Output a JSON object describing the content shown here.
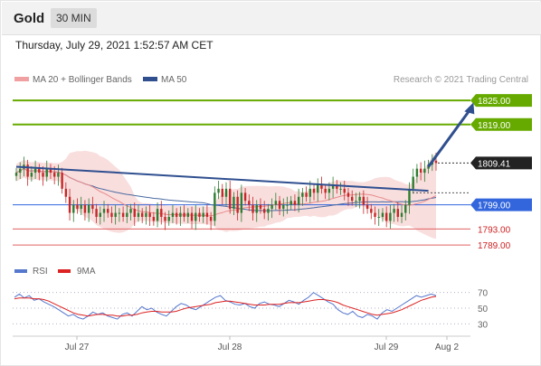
{
  "header": {
    "instrument": "Gold",
    "timeframe": "30 MIN"
  },
  "datetime": "Thursday, July 29, 2021 1:52:57 AM CET",
  "credit": "Research © 2021 Trading Central",
  "colors": {
    "resistance": "#66aa00",
    "support": "#e06060",
    "pivot": "#3366dd",
    "trend": "#2f4f8f",
    "bollinger_fill": "#f8d8d8",
    "ma20": "#e88a8a",
    "ma50": "#4a6aa0",
    "candle_up": "#2e7d32",
    "candle_down": "#c62828",
    "rsi": "#5577cc",
    "rsi_ma": "#dd2222",
    "price_tag": "#222222"
  },
  "chart_data": [
    {
      "type": "candlestick",
      "legend": [
        {
          "name": "MA 20 + Bollinger Bands",
          "color": "#f0a0a0"
        },
        {
          "name": "MA 50",
          "color": "#2f4f8f"
        }
      ],
      "x_ticks": [
        "Jul 27",
        "Jul 28",
        "Jul 29",
        "Aug 2"
      ],
      "ylim": [
        1787,
        1827.5
      ],
      "levels": [
        {
          "value": 1825.0,
          "label": "1825.00",
          "kind": "resistance"
        },
        {
          "value": 1819.0,
          "label": "1819.00",
          "kind": "resistance"
        },
        {
          "value": 1799.0,
          "label": "1799.00",
          "kind": "pivot"
        },
        {
          "value": 1793.0,
          "label": "1793.00",
          "kind": "support"
        },
        {
          "value": 1789.0,
          "label": "1789.00",
          "kind": "support"
        }
      ],
      "last_price": {
        "value": 1809.41,
        "label": "1809.41"
      },
      "price_series": [
        1807,
        1808,
        1809,
        1806,
        1807,
        1808,
        1807,
        1806,
        1808,
        1807,
        1806,
        1807,
        1803,
        1801,
        1797,
        1799,
        1798,
        1799,
        1797,
        1799,
        1798,
        1796,
        1797,
        1798,
        1797,
        1796,
        1797,
        1797,
        1796,
        1797,
        1798,
        1796,
        1797,
        1796,
        1797,
        1796,
        1795,
        1798,
        1796,
        1795,
        1796,
        1797,
        1796,
        1797,
        1796,
        1797,
        1795,
        1797,
        1796,
        1797,
        1796,
        1795,
        1802,
        1803,
        1801,
        1803,
        1798,
        1801,
        1797,
        1802,
        1800,
        1799,
        1797,
        1799,
        1798,
        1797,
        1798,
        1799,
        1800,
        1798,
        1799,
        1799,
        1800,
        1799,
        1801,
        1802,
        1801,
        1803,
        1802,
        1804,
        1803,
        1802,
        1803,
        1804,
        1803,
        1803,
        1802,
        1801,
        1800,
        1800,
        1801,
        1799,
        1798,
        1797,
        1796,
        1796,
        1797,
        1795,
        1797,
        1798,
        1796,
        1797,
        1799,
        1803,
        1806,
        1808,
        1807,
        1808,
        1809,
        1810,
        1809.41
      ],
      "trendline": [
        [
          0,
          1808.5
        ],
        [
          108,
          1802.5
        ]
      ],
      "forecast_arrow": [
        [
          108,
          1808.5
        ],
        [
          116,
          1824.5
        ]
      ]
    },
    {
      "type": "line",
      "title": "RSI",
      "legend": [
        {
          "name": "RSI",
          "color": "#5577cc"
        },
        {
          "name": "9MA",
          "color": "#dd2222"
        }
      ],
      "levels": [
        70,
        50,
        30
      ],
      "ylim": [
        20,
        80
      ],
      "series": [
        {
          "name": "RSI",
          "values": [
            64,
            68,
            63,
            66,
            60,
            62,
            58,
            55,
            52,
            48,
            44,
            40,
            42,
            38,
            36,
            40,
            45,
            42,
            44,
            40,
            38,
            36,
            42,
            44,
            40,
            46,
            52,
            48,
            50,
            45,
            42,
            40,
            46,
            52,
            56,
            54,
            50,
            48,
            52,
            56,
            60,
            64,
            66,
            60,
            58,
            55,
            54,
            56,
            52,
            50,
            56,
            58,
            55,
            54,
            52,
            56,
            60,
            58,
            55,
            60,
            64,
            70,
            66,
            62,
            58,
            55,
            48,
            44,
            42,
            46,
            40,
            38,
            42,
            40,
            36,
            44,
            48,
            46,
            50,
            54,
            58,
            62,
            66,
            64,
            66,
            68,
            66
          ]
        },
        {
          "name": "9MA",
          "values": [
            62,
            63,
            63,
            63,
            62,
            62,
            61,
            59,
            56,
            53,
            50,
            47,
            44,
            42,
            41,
            40,
            41,
            42,
            42,
            41,
            41,
            40,
            40,
            41,
            41,
            42,
            44,
            45,
            46,
            46,
            45,
            45,
            45,
            46,
            48,
            50,
            51,
            52,
            53,
            54,
            55,
            57,
            58,
            59,
            59,
            58,
            57,
            56,
            55,
            54,
            54,
            54,
            55,
            55,
            55,
            56,
            57,
            57,
            57,
            58,
            59,
            60,
            61,
            61,
            60,
            59,
            57,
            54,
            52,
            50,
            48,
            46,
            44,
            42,
            41,
            42,
            43,
            44,
            46,
            48,
            51,
            54,
            57,
            60,
            62,
            64,
            65
          ]
        }
      ]
    }
  ]
}
